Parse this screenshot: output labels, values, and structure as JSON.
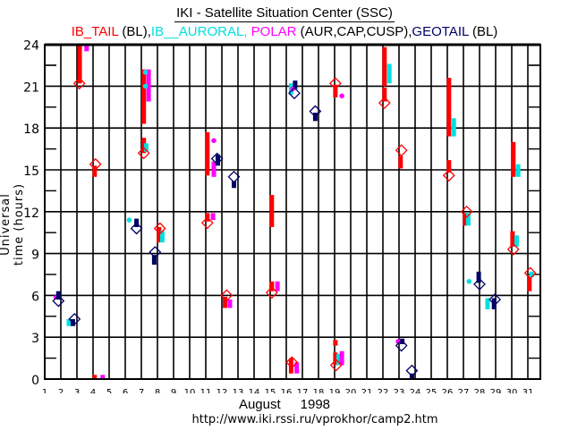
{
  "chart_data": {
    "type": "scatter",
    "title": "IKI - Satellite Situation Center (SSC)",
    "legend": [
      {
        "label": "IB_TAIL",
        "suffix": " (BL),",
        "color": "#ff0000",
        "key": "IB_TAIL"
      },
      {
        "label": "IB__AURORAL,",
        "suffix": " ",
        "color": "#00e0e0",
        "key": "IB_AURORAL"
      },
      {
        "label": "POLAR",
        "suffix": " (AUR,CAP,CUSP),",
        "color": "#ff00ff",
        "key": "POLAR"
      },
      {
        "label": "GEOTAIL",
        "suffix": " (BL)",
        "color": "#000066",
        "key": "GEOTAIL"
      }
    ],
    "xlabel": "August    1998",
    "month": "August",
    "year": "1998",
    "ylabel": "Universal time (hours)",
    "xlim": [
      1,
      31.8
    ],
    "ylim": [
      0,
      24
    ],
    "xticks": [
      "1",
      "2",
      "3",
      "4",
      "5",
      "6",
      "7",
      "8",
      "9",
      "10",
      "11",
      "12",
      "13",
      "14",
      "15",
      "16",
      "17",
      "18",
      "19",
      "20",
      "21",
      "22",
      "23",
      "24",
      "25",
      "26",
      "27",
      "28",
      "29",
      "30",
      "31"
    ],
    "yticks": [
      "0",
      "3",
      "6",
      "9",
      "12",
      "15",
      "18",
      "21",
      "24"
    ],
    "grid": true,
    "colors": {
      "IB_TAIL": "#ff0000",
      "IB_AURORAL": "#00e0e0",
      "POLAR": "#ff00ff",
      "GEOTAIL": "#000066"
    },
    "intervals": [
      {
        "sat": "IB_TAIL",
        "day": 3.17,
        "from": 21.2,
        "to": 24
      },
      {
        "sat": "POLAR",
        "day": 3.6,
        "from": 23.5,
        "to": 24
      },
      {
        "sat": "IB_TAIL",
        "day": 4.1,
        "from": 14.5,
        "to": 15.3
      },
      {
        "sat": "IB_TAIL",
        "day": 4.1,
        "from": 0,
        "to": 0.3
      },
      {
        "sat": "POLAR",
        "day": 4.6,
        "from": 0,
        "to": 0.3
      },
      {
        "sat": "POLAR",
        "day": 1.7,
        "from": 5.7,
        "to": 6.0
      },
      {
        "sat": "GEOTAIL",
        "day": 1.85,
        "from": 5.7,
        "to": 6.3
      },
      {
        "sat": "IB_AURORAL",
        "day": 2.5,
        "from": 3.8,
        "to": 4.3
      },
      {
        "sat": "GEOTAIL",
        "day": 2.75,
        "from": 3.8,
        "to": 4.3
      },
      {
        "sat": "IB_TAIL",
        "day": 7.15,
        "from": 18.3,
        "to": 22.2
      },
      {
        "sat": "POLAR",
        "day": 7.45,
        "from": 19.9,
        "to": 22.2
      },
      {
        "sat": "IB_TAIL",
        "day": 7.15,
        "from": 16.2,
        "to": 17.3
      },
      {
        "sat": "IB_AURORAL",
        "day": 7.3,
        "from": 16.3,
        "to": 16.9
      },
      {
        "sat": "GEOTAIL",
        "day": 6.7,
        "from": 10.9,
        "to": 11.5
      },
      {
        "sat": "IB_TAIL",
        "day": 8.1,
        "from": 9.8,
        "to": 10.9
      },
      {
        "sat": "IB_AURORAL",
        "day": 8.3,
        "from": 9.8,
        "to": 10.6
      },
      {
        "sat": "GEOTAIL",
        "day": 7.8,
        "from": 8.2,
        "to": 8.9
      },
      {
        "sat": "IB_TAIL",
        "day": 11.1,
        "from": 14.6,
        "to": 17.7
      },
      {
        "sat": "POLAR",
        "day": 11.5,
        "from": 14.5,
        "to": 15.6
      },
      {
        "sat": "GEOTAIL",
        "day": 11.75,
        "from": 15.3,
        "to": 16.1
      },
      {
        "sat": "IB_TAIL",
        "day": 11.1,
        "from": 11.3,
        "to": 11.9
      },
      {
        "sat": "POLAR",
        "day": 11.45,
        "from": 11.4,
        "to": 11.9
      },
      {
        "sat": "IB_TAIL",
        "day": 12.2,
        "from": 5.1,
        "to": 5.9
      },
      {
        "sat": "POLAR",
        "day": 12.5,
        "from": 5.1,
        "to": 5.7
      },
      {
        "sat": "GEOTAIL",
        "day": 12.75,
        "from": 13.7,
        "to": 14.2
      },
      {
        "sat": "IB_TAIL",
        "day": 15.1,
        "from": 10.9,
        "to": 13.2
      },
      {
        "sat": "IB_TAIL",
        "day": 15.1,
        "from": 6.3,
        "to": 7.0
      },
      {
        "sat": "POLAR",
        "day": 15.45,
        "from": 6.3,
        "to": 7.0
      },
      {
        "sat": "IB_AURORAL",
        "day": 16.3,
        "from": 20.4,
        "to": 21.2
      },
      {
        "sat": "GEOTAIL",
        "day": 16.55,
        "from": 20.8,
        "to": 21.4
      },
      {
        "sat": "IB_TAIL",
        "day": 16.3,
        "from": 0.4,
        "to": 1.5
      },
      {
        "sat": "POLAR",
        "day": 16.65,
        "from": 0.4,
        "to": 1.2
      },
      {
        "sat": "GEOTAIL",
        "day": 17.8,
        "from": 18.5,
        "to": 19.1
      },
      {
        "sat": "IB_TAIL",
        "day": 19.05,
        "from": 20.2,
        "to": 21.1
      },
      {
        "sat": "IB_TAIL",
        "day": 19.05,
        "from": 2.4,
        "to": 2.8
      },
      {
        "sat": "IB_TAIL",
        "day": 19.05,
        "from": 1.0,
        "to": 1.9
      },
      {
        "sat": "IB_AURORAL",
        "day": 19.25,
        "from": 1.0,
        "to": 1.8
      },
      {
        "sat": "POLAR",
        "day": 19.45,
        "from": 1.0,
        "to": 2.0
      },
      {
        "sat": "IB_TAIL",
        "day": 22.1,
        "from": 21.0,
        "to": 23.8
      },
      {
        "sat": "IB_AURORAL",
        "day": 22.4,
        "from": 21.2,
        "to": 22.6
      },
      {
        "sat": "IB_TAIL",
        "day": 22.1,
        "from": 19.9,
        "to": 20.9
      },
      {
        "sat": "IB_TAIL",
        "day": 23.1,
        "from": 15.1,
        "to": 16.0
      },
      {
        "sat": "GEOTAIL",
        "day": 23.2,
        "from": 2.5,
        "to": 2.9
      },
      {
        "sat": "GEOTAIL",
        "day": 23.8,
        "from": 0,
        "to": 0.4
      },
      {
        "sat": "IB_TAIL",
        "day": 26.1,
        "from": 17.4,
        "to": 21.6
      },
      {
        "sat": "IB_AURORAL",
        "day": 26.4,
        "from": 17.4,
        "to": 18.7
      },
      {
        "sat": "IB_TAIL",
        "day": 26.1,
        "from": 14.8,
        "to": 15.7
      },
      {
        "sat": "IB_TAIL",
        "day": 27.1,
        "from": 11.0,
        "to": 11.9
      },
      {
        "sat": "IB_AURORAL",
        "day": 27.3,
        "from": 11.0,
        "to": 11.9
      },
      {
        "sat": "GEOTAIL",
        "day": 27.95,
        "from": 6.9,
        "to": 7.7
      },
      {
        "sat": "IB_AURORAL",
        "day": 28.5,
        "from": 5.0,
        "to": 5.8
      },
      {
        "sat": "GEOTAIL",
        "day": 28.9,
        "from": 5.0,
        "to": 5.8
      },
      {
        "sat": "IB_TAIL",
        "day": 30.1,
        "from": 14.5,
        "to": 17.0
      },
      {
        "sat": "IB_AURORAL",
        "day": 30.4,
        "from": 14.5,
        "to": 15.4
      },
      {
        "sat": "IB_TAIL",
        "day": 30.05,
        "from": 9.5,
        "to": 10.6
      },
      {
        "sat": "IB_AURORAL",
        "day": 30.3,
        "from": 9.5,
        "to": 10.3
      },
      {
        "sat": "IB_TAIL",
        "day": 31.1,
        "from": 6.3,
        "to": 7.4
      },
      {
        "sat": "IB_AURORAL",
        "day": 31.25,
        "from": 7.3,
        "to": 7.7
      }
    ],
    "points": [
      {
        "sat": "IB_AURORAL",
        "day": 7.25,
        "hour": 22.0
      },
      {
        "sat": "IB_AURORAL",
        "day": 7.25,
        "hour": 21.0
      },
      {
        "sat": "IB_AURORAL",
        "day": 6.25,
        "hour": 11.4
      },
      {
        "sat": "POLAR",
        "day": 11.5,
        "hour": 17.1
      },
      {
        "sat": "POLAR",
        "day": 16.4,
        "hour": 20.8
      },
      {
        "sat": "POLAR",
        "day": 19.45,
        "hour": 20.3
      },
      {
        "sat": "POLAR",
        "day": 22.95,
        "hour": 2.7
      },
      {
        "sat": "IB_AURORAL",
        "day": 27.35,
        "hour": 7.0
      }
    ],
    "markers": [
      {
        "sat": "IB_TAIL",
        "day": 3.15,
        "hour": 21.2
      },
      {
        "sat": "IB_TAIL",
        "day": 4.15,
        "hour": 15.4
      },
      {
        "sat": "GEOTAIL",
        "day": 1.85,
        "hour": 5.6
      },
      {
        "sat": "GEOTAIL",
        "day": 2.85,
        "hour": 4.3
      },
      {
        "sat": "IB_TAIL",
        "day": 7.15,
        "hour": 16.2
      },
      {
        "sat": "GEOTAIL",
        "day": 6.7,
        "hour": 10.8
      },
      {
        "sat": "IB_TAIL",
        "day": 8.15,
        "hour": 10.8
      },
      {
        "sat": "GEOTAIL",
        "day": 7.85,
        "hour": 9.1
      },
      {
        "sat": "GEOTAIL",
        "day": 11.7,
        "hour": 15.8
      },
      {
        "sat": "IB_TAIL",
        "day": 11.1,
        "hour": 11.2
      },
      {
        "sat": "IB_TAIL",
        "day": 12.3,
        "hour": 6.0
      },
      {
        "sat": "GEOTAIL",
        "day": 12.75,
        "hour": 14.5
      },
      {
        "sat": "IB_TAIL",
        "day": 15.1,
        "hour": 6.2
      },
      {
        "sat": "GEOTAIL",
        "day": 16.5,
        "hour": 20.5
      },
      {
        "sat": "IB_TAIL",
        "day": 16.35,
        "hour": 1.2
      },
      {
        "sat": "GEOTAIL",
        "day": 17.8,
        "hour": 19.2
      },
      {
        "sat": "IB_TAIL",
        "day": 19.05,
        "hour": 21.2
      },
      {
        "sat": "IB_TAIL",
        "day": 19.1,
        "hour": 1.0
      },
      {
        "sat": "IB_TAIL",
        "day": 22.1,
        "hour": 19.8
      },
      {
        "sat": "IB_TAIL",
        "day": 23.15,
        "hour": 16.4
      },
      {
        "sat": "GEOTAIL",
        "day": 23.15,
        "hour": 2.4
      },
      {
        "sat": "GEOTAIL",
        "day": 23.8,
        "hour": 0.6
      },
      {
        "sat": "IB_TAIL",
        "day": 26.1,
        "hour": 14.6
      },
      {
        "sat": "IB_TAIL",
        "day": 27.2,
        "hour": 12.0
      },
      {
        "sat": "GEOTAIL",
        "day": 28.0,
        "hour": 6.8
      },
      {
        "sat": "GEOTAIL",
        "day": 28.95,
        "hour": 5.7
      },
      {
        "sat": "IB_TAIL",
        "day": 30.1,
        "hour": 9.3
      },
      {
        "sat": "IB_TAIL",
        "day": 31.15,
        "hour": 7.6
      }
    ]
  },
  "footer": {
    "month": "August",
    "year": "1998",
    "url": "http://www.iki.rssi.ru/vprokhor/camp2.htm"
  }
}
